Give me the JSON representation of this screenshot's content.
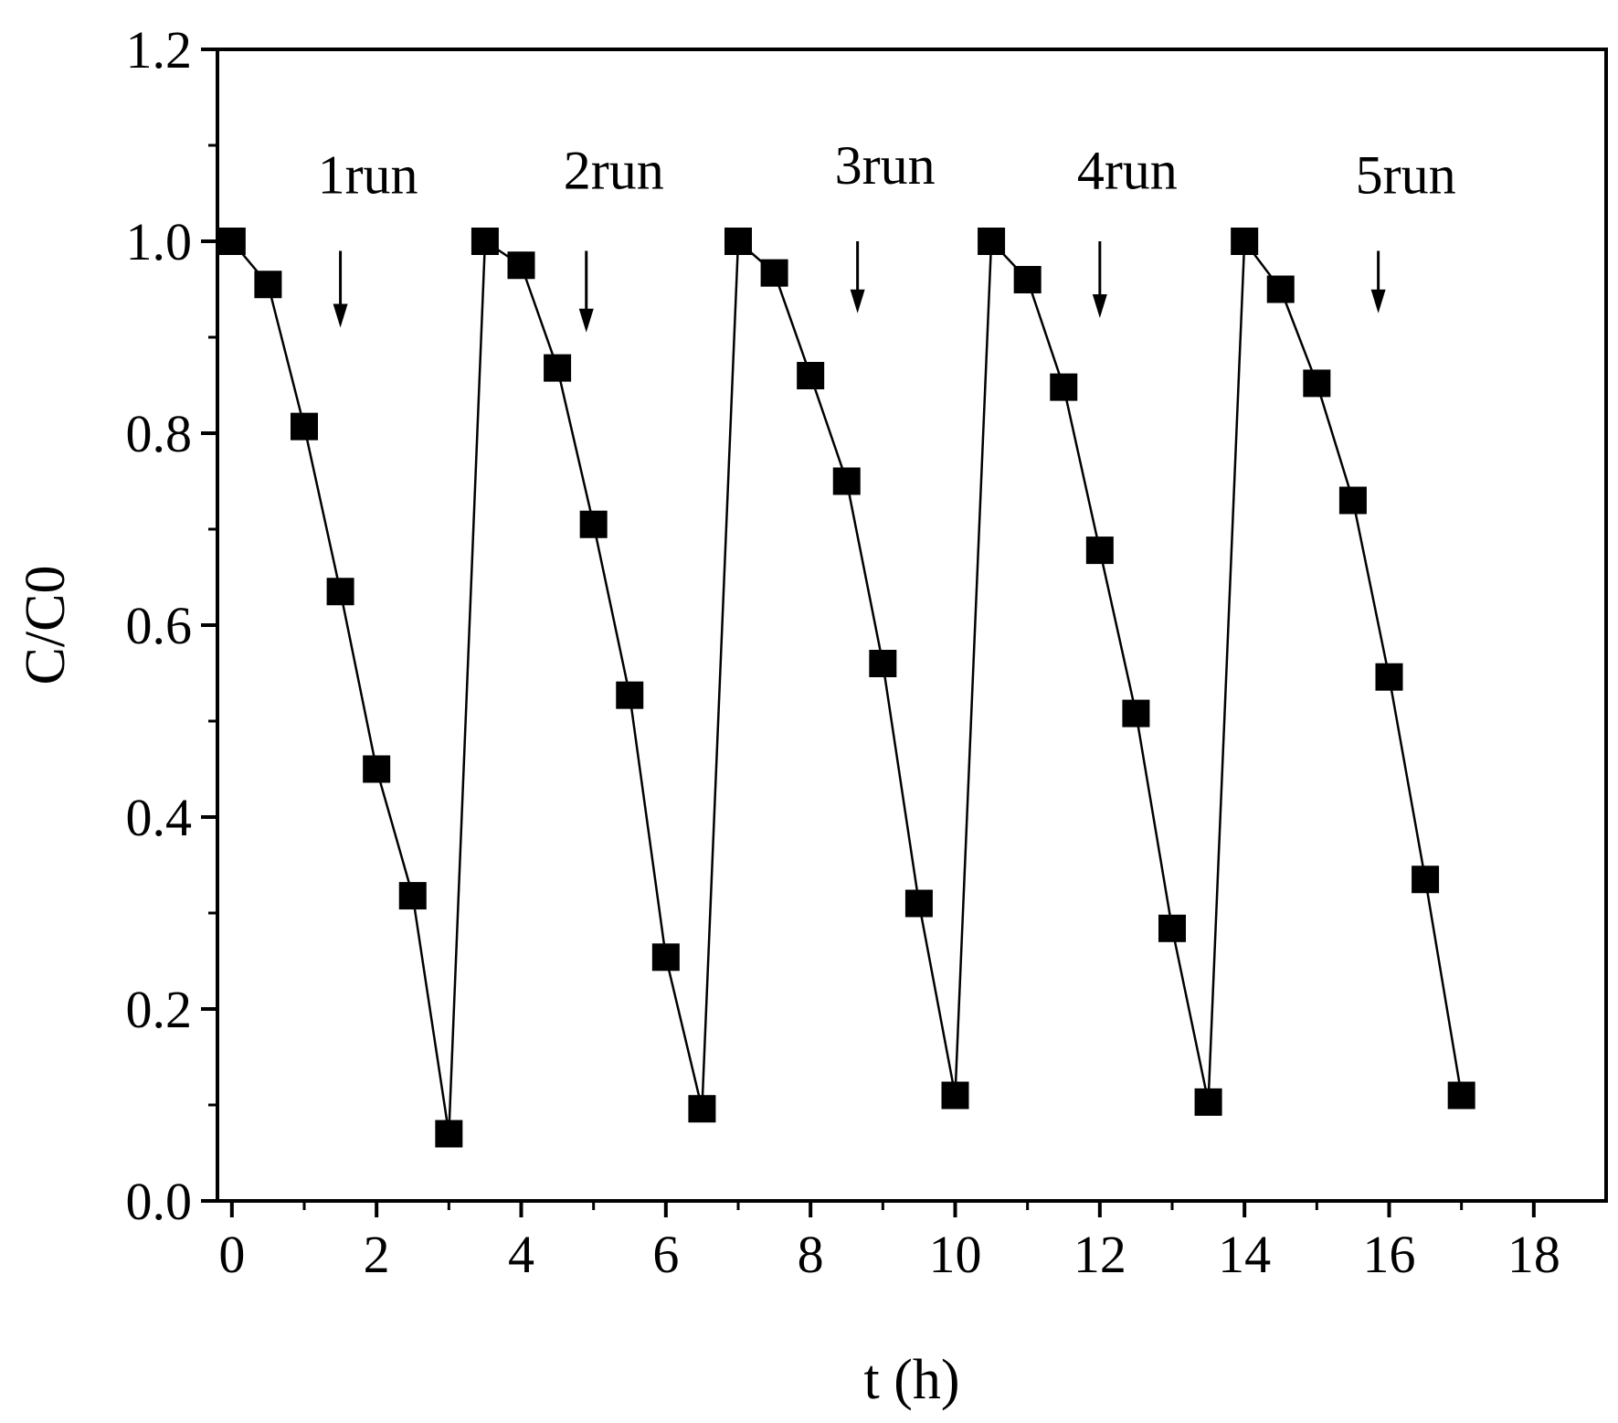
{
  "chart_data": {
    "type": "scatter",
    "xlabel": "t (h)",
    "ylabel": "C/C0",
    "xlim": [
      -0.2,
      19
    ],
    "ylim": [
      0.0,
      1.2
    ],
    "xticks": [
      0,
      2,
      4,
      6,
      8,
      10,
      12,
      14,
      16,
      18
    ],
    "xtick_labels": [
      "0",
      "2",
      "4",
      "6",
      "8",
      "10",
      "12",
      "14",
      "16",
      "18"
    ],
    "yticks": [
      0.0,
      0.2,
      0.4,
      0.6,
      0.8,
      1.0,
      1.2
    ],
    "ytick_labels": [
      "0.0",
      "0.2",
      "0.4",
      "0.6",
      "0.8",
      "1.0",
      "1.2"
    ],
    "grid": false,
    "line": true,
    "marker": "square",
    "color": "#000000",
    "series": [
      {
        "x": [
          0,
          0.5,
          1,
          1.5,
          2,
          2.5,
          3,
          3.5,
          4,
          4.5,
          5,
          5.5,
          6,
          6.5,
          7,
          7.5,
          8,
          8.5,
          9,
          9.5,
          10,
          10.5,
          11,
          11.5,
          12,
          12.5,
          13,
          13.5,
          14,
          14.5,
          15,
          15.5,
          16,
          16.5,
          17
        ],
        "values": [
          1.0,
          0.955,
          0.807,
          0.635,
          0.45,
          0.318,
          0.07,
          1.0,
          0.975,
          0.868,
          0.705,
          0.527,
          0.254,
          0.096,
          1.0,
          0.967,
          0.86,
          0.75,
          0.56,
          0.31,
          0.11,
          1.0,
          0.96,
          0.848,
          0.678,
          0.508,
          0.284,
          0.103,
          1.0,
          0.95,
          0.852,
          0.73,
          0.546,
          0.335,
          0.11
        ]
      }
    ],
    "annotations": [
      {
        "text": "1run",
        "x": 1.5,
        "y_text": 1.05,
        "arrow_from": 0.99,
        "arrow_to": 0.91
      },
      {
        "text": "2run",
        "x": 4.9,
        "y_text": 1.055,
        "arrow_from": 0.99,
        "arrow_to": 0.905
      },
      {
        "text": "3run",
        "x": 8.65,
        "y_text": 1.06,
        "arrow_from": 1.0,
        "arrow_to": 0.925
      },
      {
        "text": "4run",
        "x": 12.0,
        "y_text": 1.055,
        "arrow_from": 1.0,
        "arrow_to": 0.92
      },
      {
        "text": "5run",
        "x": 15.85,
        "y_text": 1.05,
        "arrow_from": 0.99,
        "arrow_to": 0.925
      }
    ]
  }
}
